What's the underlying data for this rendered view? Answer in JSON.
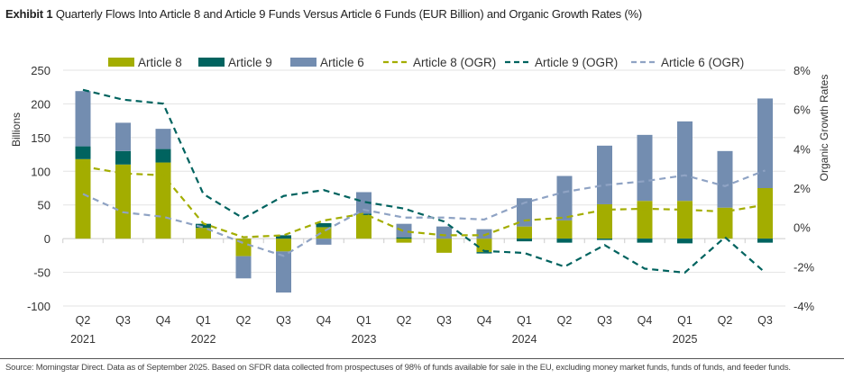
{
  "title": {
    "prefix": "Exhibit 1",
    "text": "Quarterly Flows Into Article 8 and Article 9 Funds Versus Article 6 Funds (EUR Billion) and Organic Growth Rates (%)"
  },
  "footer": "Source: Morningstar Direct. Data as of September 2025. Based on SFDR data collected from prospectuses of 98% of funds available for sale in the EU, excluding money market funds, funds of funds, and feeder funds.",
  "chart_data": {
    "type": "bar",
    "stacked": true,
    "categories": [
      "Q2",
      "Q3",
      "Q4",
      "Q1",
      "Q2",
      "Q3",
      "Q4",
      "Q1",
      "Q2",
      "Q3",
      "Q4",
      "Q1",
      "Q2",
      "Q3",
      "Q4",
      "Q1",
      "Q2",
      "Q3"
    ],
    "year_labels": [
      "2021",
      "",
      "",
      "2022",
      "",
      "",
      "",
      "2023",
      "",
      "",
      "",
      "2024",
      "",
      "",
      "",
      "2025",
      "",
      ""
    ],
    "ylabel": "Billions",
    "ylim": [
      -100,
      250
    ],
    "yticks": [
      -100,
      -50,
      0,
      50,
      100,
      150,
      200,
      250
    ],
    "y2label": "Organic Growth Rates",
    "y2lim": [
      -4,
      8
    ],
    "y2ticks": [
      -4,
      -2,
      0,
      2,
      4,
      6,
      8
    ],
    "y2tick_suffix": "%",
    "grid": true,
    "legend_placement": "top",
    "series": [
      {
        "name": "Article 8",
        "kind": "bar",
        "axis": "left",
        "color": "#a3ad00",
        "values": [
          118,
          110,
          113,
          16,
          -26,
          -19,
          17,
          35,
          -6,
          -21,
          -20,
          18,
          27,
          51,
          56,
          56,
          46,
          75
        ]
      },
      {
        "name": "Article 9",
        "kind": "bar",
        "axis": "left",
        "color": "#00635f",
        "values": [
          19,
          20,
          20,
          6,
          0,
          5,
          6,
          2,
          2,
          0,
          -2,
          -4,
          -6,
          -2,
          -6,
          -7,
          0,
          -6
        ]
      },
      {
        "name": "Article 6",
        "kind": "bar",
        "axis": "left",
        "color": "#738db0",
        "values": [
          82,
          42,
          30,
          0,
          -33,
          -61,
          -9,
          32,
          20,
          18,
          14,
          42,
          66,
          87,
          98,
          118,
          84,
          133
        ]
      },
      {
        "name": "Article 8 (OGR)",
        "kind": "line",
        "axis": "right",
        "color": "#a3ad00",
        "values": [
          3.1,
          2.75,
          2.65,
          0.2,
          -0.5,
          -0.4,
          0.35,
          0.7,
          -0.2,
          -0.4,
          -0.4,
          0.35,
          0.5,
          0.9,
          0.95,
          0.9,
          0.8,
          1.15
        ]
      },
      {
        "name": "Article 9 (OGR)",
        "kind": "line",
        "axis": "right",
        "color": "#00635f",
        "values": [
          7.0,
          6.5,
          6.3,
          1.7,
          0.46,
          1.6,
          1.9,
          1.3,
          0.96,
          0.3,
          -1.2,
          -1.3,
          -2.0,
          -0.9,
          -2.1,
          -2.3,
          -0.5,
          -2.3
        ]
      },
      {
        "name": "Article 6 (OGR)",
        "kind": "line",
        "axis": "right",
        "color": "#8fa3c4",
        "values": [
          1.7,
          0.77,
          0.54,
          0.0,
          -0.8,
          -1.45,
          -0.2,
          0.9,
          0.5,
          0.5,
          0.4,
          1.25,
          1.8,
          2.15,
          2.35,
          2.65,
          2.1,
          2.9
        ]
      }
    ]
  }
}
